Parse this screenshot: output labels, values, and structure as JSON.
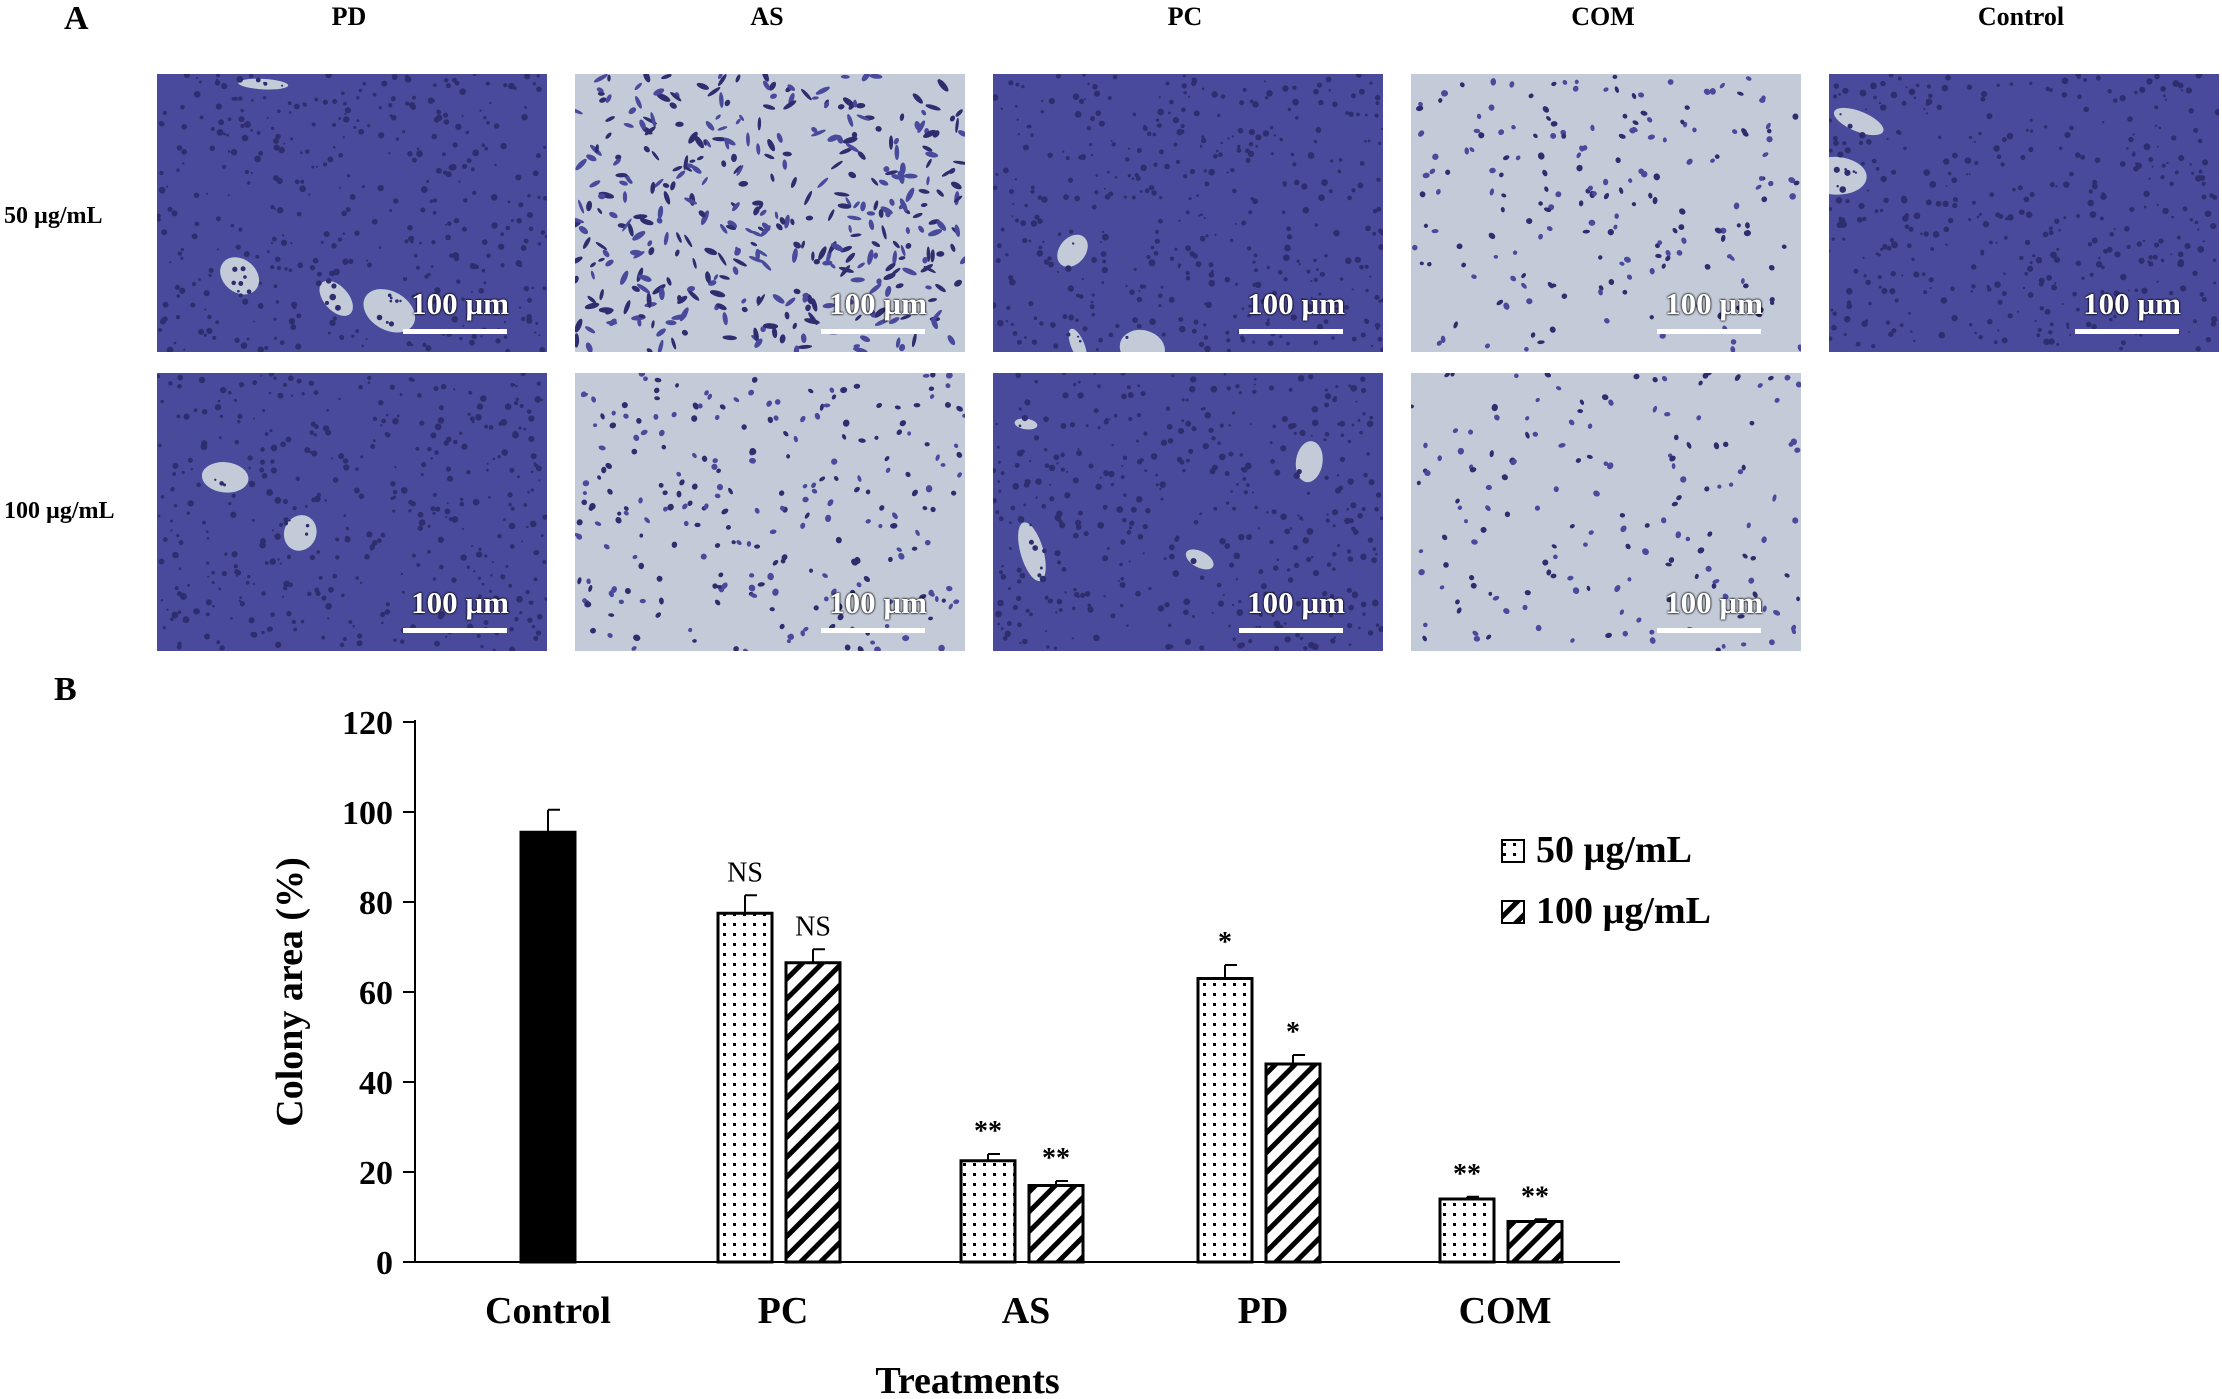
{
  "panel_a": {
    "letter": "A",
    "columns": [
      "PD",
      "AS",
      "PC",
      "COM",
      "Control"
    ],
    "rows": [
      "50 µg/mL",
      "100 µg/mL"
    ],
    "scale_label": "100 µm",
    "colors": {
      "stain_dark": "#2e2d6e",
      "stain_mid": "#4a4a9c",
      "background_light": "#c4cbd8"
    }
  },
  "chart_data": {
    "panel_letter": "B",
    "type": "bar",
    "title": "",
    "xlabel": "Treatments",
    "ylabel": "Colony area (%)",
    "ylim": [
      0,
      120
    ],
    "yticks": [
      0,
      20,
      40,
      60,
      80,
      100,
      120
    ],
    "categories": [
      "Control",
      "PC",
      "AS",
      "PD",
      "COM"
    ],
    "series": [
      {
        "name": "Control",
        "values": [
          95.5,
          null,
          null,
          null,
          null
        ],
        "errors": [
          5,
          null,
          null,
          null,
          null
        ],
        "annotations": [
          "",
          "",
          "",
          "",
          ""
        ],
        "pattern": "solid",
        "color": "#000000"
      },
      {
        "name": "50 µg/mL",
        "values": [
          null,
          77.5,
          22.5,
          63.0,
          14.0
        ],
        "errors": [
          null,
          4.0,
          1.5,
          3.0,
          0.5
        ],
        "annotations": [
          "",
          "NS",
          "**",
          "*",
          "**"
        ],
        "pattern": "dotted"
      },
      {
        "name": "100 µg/mL",
        "values": [
          null,
          66.5,
          17.0,
          44.0,
          9.0
        ],
        "errors": [
          null,
          3.0,
          1.0,
          2.0,
          0.5
        ],
        "annotations": [
          "",
          "NS",
          "**",
          "*",
          "**"
        ],
        "pattern": "hatched"
      }
    ],
    "legend": {
      "placement": "top-right",
      "entries": [
        "50 µg/mL",
        "100 µg/mL"
      ]
    }
  }
}
